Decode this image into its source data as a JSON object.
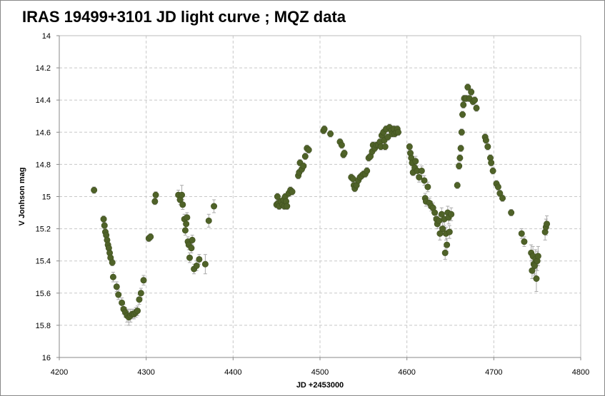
{
  "chart_data": {
    "type": "scatter",
    "title": "IRAS 19499+3101 JD light curve ; MQZ data",
    "xlabel": "JD +2453000",
    "ylabel": "V Jonhson mag",
    "xlim": [
      4200,
      4800
    ],
    "ylim": [
      14,
      16
    ],
    "y_inverted": true,
    "x_ticks": [
      4200,
      4300,
      4400,
      4500,
      4600,
      4700,
      4800
    ],
    "y_ticks": [
      14,
      14.2,
      14.4,
      14.6,
      14.8,
      15,
      15.2,
      15.4,
      15.6,
      15.8,
      16
    ],
    "x_tick_labels": [
      "4200",
      "4300",
      "4400",
      "4500",
      "4600",
      "4700",
      "4800"
    ],
    "y_tick_labels": [
      "14",
      "14.2",
      "14.4",
      "14.6",
      "14.8",
      "15",
      "15.2",
      "15.4",
      "15.6",
      "15.8",
      "16"
    ],
    "grid": true,
    "legend": "none",
    "marker_color": "#4f6228",
    "errorbar_color": "#aaaaaa",
    "grid_color": "#c8c8c8",
    "series": [
      {
        "points": [
          [
            4240,
            14.96,
            0.02
          ],
          [
            4251,
            15.14,
            0.02
          ],
          [
            4252,
            15.18,
            0.02
          ],
          [
            4253,
            15.22,
            0.02
          ],
          [
            4254,
            15.24,
            0.02
          ],
          [
            4255,
            15.27,
            0.02
          ],
          [
            4256,
            15.3,
            0.02
          ],
          [
            4257,
            15.32,
            0.02
          ],
          [
            4258,
            15.35,
            0.02
          ],
          [
            4259,
            15.38,
            0.02
          ],
          [
            4261,
            15.41,
            0.02
          ],
          [
            4262,
            15.5,
            0.03
          ],
          [
            4266,
            15.56,
            0.03
          ],
          [
            4268,
            15.61,
            0.03
          ],
          [
            4272,
            15.66,
            0.03
          ],
          [
            4274,
            15.7,
            0.03
          ],
          [
            4276,
            15.72,
            0.03
          ],
          [
            4278,
            15.74,
            0.04
          ],
          [
            4280,
            15.75,
            0.05
          ],
          [
            4282,
            15.74,
            0.04
          ],
          [
            4284,
            15.73,
            0.03
          ],
          [
            4286,
            15.73,
            0.03
          ],
          [
            4288,
            15.72,
            0.03
          ],
          [
            4290,
            15.71,
            0.03
          ],
          [
            4292,
            15.64,
            0.03
          ],
          [
            4294,
            15.6,
            0.03
          ],
          [
            4297,
            15.52,
            0.03
          ],
          [
            4303,
            15.26,
            0.02
          ],
          [
            4305,
            15.25,
            0.02
          ],
          [
            4310,
            15.03,
            0.02
          ],
          [
            4311,
            14.99,
            0.02
          ],
          [
            4337,
            14.99,
            0.03
          ],
          [
            4339,
            15.02,
            0.03
          ],
          [
            4341,
            14.99,
            0.06
          ],
          [
            4342,
            15.05,
            0.03
          ],
          [
            4344,
            15.14,
            0.03
          ],
          [
            4345,
            15.21,
            0.03
          ],
          [
            4346,
            15.17,
            0.03
          ],
          [
            4347,
            15.13,
            0.03
          ],
          [
            4348,
            15.28,
            0.03
          ],
          [
            4349,
            15.3,
            0.03
          ],
          [
            4350,
            15.38,
            0.03
          ],
          [
            4352,
            15.32,
            0.03
          ],
          [
            4353,
            15.27,
            0.03
          ],
          [
            4355,
            15.45,
            0.03
          ],
          [
            4358,
            15.43,
            0.03
          ],
          [
            4361,
            15.39,
            0.03
          ],
          [
            4368,
            15.42,
            0.06
          ],
          [
            4372,
            15.15,
            0.04
          ],
          [
            4378,
            15.06,
            0.04
          ],
          [
            4450,
            15.05,
            0.02
          ],
          [
            4451,
            15.0,
            0.02
          ],
          [
            4452,
            15.04,
            0.02
          ],
          [
            4453,
            15.06,
            0.02
          ],
          [
            4455,
            15.03,
            0.02
          ],
          [
            4457,
            15.05,
            0.02
          ],
          [
            4458,
            15.02,
            0.02
          ],
          [
            4459,
            15.06,
            0.02
          ],
          [
            4460,
            15.0,
            0.02
          ],
          [
            4461,
            15.03,
            0.02
          ],
          [
            4462,
            15.06,
            0.02
          ],
          [
            4464,
            14.98,
            0.02
          ],
          [
            4466,
            14.96,
            0.02
          ],
          [
            4468,
            14.97,
            0.02
          ],
          [
            4475,
            14.87,
            0.02
          ],
          [
            4476,
            14.85,
            0.02
          ],
          [
            4477,
            14.79,
            0.02
          ],
          [
            4479,
            14.83,
            0.02
          ],
          [
            4481,
            14.81,
            0.02
          ],
          [
            4483,
            14.75,
            0.02
          ],
          [
            4485,
            14.7,
            0.02
          ],
          [
            4487,
            14.71,
            0.02
          ],
          [
            4504,
            14.59,
            0.02
          ],
          [
            4505,
            14.58,
            0.02
          ],
          [
            4512,
            14.61,
            0.02
          ],
          [
            4523,
            14.66,
            0.02
          ],
          [
            4525,
            14.68,
            0.02
          ],
          [
            4527,
            14.74,
            0.02
          ],
          [
            4528,
            14.73,
            0.02
          ],
          [
            4536,
            14.88,
            0.02
          ],
          [
            4538,
            14.89,
            0.02
          ],
          [
            4539,
            14.93,
            0.02
          ],
          [
            4540,
            14.95,
            0.02
          ],
          [
            4542,
            14.93,
            0.02
          ],
          [
            4544,
            14.9,
            0.02
          ],
          [
            4546,
            14.88,
            0.02
          ],
          [
            4548,
            14.87,
            0.02
          ],
          [
            4550,
            14.86,
            0.02
          ],
          [
            4552,
            14.86,
            0.02
          ],
          [
            4554,
            14.84,
            0.02
          ],
          [
            4556,
            14.76,
            0.02
          ],
          [
            4558,
            14.75,
            0.02
          ],
          [
            4560,
            14.72,
            0.02
          ],
          [
            4561,
            14.68,
            0.02
          ],
          [
            4563,
            14.7,
            0.02
          ],
          [
            4565,
            14.68,
            0.02
          ],
          [
            4567,
            14.68,
            0.02
          ],
          [
            4569,
            14.66,
            0.02
          ],
          [
            4570,
            14.69,
            0.02
          ],
          [
            4571,
            14.62,
            0.02
          ],
          [
            4573,
            14.6,
            0.02
          ],
          [
            4574,
            14.65,
            0.02
          ],
          [
            4575,
            14.69,
            0.02
          ],
          [
            4576,
            14.58,
            0.02
          ],
          [
            4578,
            14.63,
            0.02
          ],
          [
            4580,
            14.57,
            0.02
          ],
          [
            4582,
            14.59,
            0.02
          ],
          [
            4583,
            14.61,
            0.02
          ],
          [
            4585,
            14.58,
            0.02
          ],
          [
            4586,
            14.61,
            0.02
          ],
          [
            4588,
            14.6,
            0.02
          ],
          [
            4589,
            14.58,
            0.02
          ],
          [
            4590,
            14.6,
            0.02
          ],
          [
            4603,
            14.69,
            0.02
          ],
          [
            4604,
            14.73,
            0.02
          ],
          [
            4605,
            14.76,
            0.02
          ],
          [
            4606,
            14.79,
            0.02
          ],
          [
            4607,
            14.85,
            0.02
          ],
          [
            4609,
            14.82,
            0.02
          ],
          [
            4610,
            14.78,
            0.03
          ],
          [
            4612,
            14.84,
            0.03
          ],
          [
            4614,
            14.88,
            0.03
          ],
          [
            4617,
            14.84,
            0.03
          ],
          [
            4620,
            14.9,
            0.03
          ],
          [
            4621,
            15.01,
            0.03
          ],
          [
            4622,
            15.03,
            0.03
          ],
          [
            4624,
            14.94,
            0.03
          ],
          [
            4626,
            15.04,
            0.03
          ],
          [
            4628,
            15.06,
            0.03
          ],
          [
            4630,
            15.07,
            0.03
          ],
          [
            4632,
            15.1,
            0.03
          ],
          [
            4634,
            15.14,
            0.03
          ],
          [
            4635,
            15.17,
            0.03
          ],
          [
            4637,
            15.15,
            0.03
          ],
          [
            4638,
            15.23,
            0.04
          ],
          [
            4640,
            15.11,
            0.04
          ],
          [
            4641,
            15.2,
            0.04
          ],
          [
            4643,
            15.14,
            0.04
          ],
          [
            4644,
            15.35,
            0.04
          ],
          [
            4645,
            15.23,
            0.04
          ],
          [
            4646,
            15.3,
            0.04
          ],
          [
            4647,
            15.1,
            0.04
          ],
          [
            4648,
            15.13,
            0.04
          ],
          [
            4649,
            15.22,
            0.04
          ],
          [
            4651,
            15.11,
            0.04
          ],
          [
            4658,
            14.93,
            0.02
          ],
          [
            4660,
            14.81,
            0.02
          ],
          [
            4661,
            14.76,
            0.02
          ],
          [
            4662,
            14.7,
            0.02
          ],
          [
            4663,
            14.6,
            0.02
          ],
          [
            4664,
            14.49,
            0.02
          ],
          [
            4665,
            14.43,
            0.02
          ],
          [
            4666,
            14.39,
            0.02
          ],
          [
            4668,
            14.39,
            0.02
          ],
          [
            4670,
            14.32,
            0.02
          ],
          [
            4672,
            14.39,
            0.02
          ],
          [
            4674,
            14.35,
            0.02
          ],
          [
            4676,
            14.41,
            0.02
          ],
          [
            4678,
            14.4,
            0.02
          ],
          [
            4680,
            14.45,
            0.02
          ],
          [
            4690,
            14.63,
            0.02
          ],
          [
            4691,
            14.65,
            0.02
          ],
          [
            4693,
            14.69,
            0.02
          ],
          [
            4696,
            14.76,
            0.02
          ],
          [
            4697,
            14.79,
            0.02
          ],
          [
            4699,
            14.84,
            0.02
          ],
          [
            4703,
            14.92,
            0.02
          ],
          [
            4705,
            14.94,
            0.02
          ],
          [
            4707,
            14.98,
            0.02
          ],
          [
            4710,
            15.01,
            0.02
          ],
          [
            4720,
            15.1,
            0.02
          ],
          [
            4732,
            15.23,
            0.03
          ],
          [
            4735,
            15.28,
            0.03
          ],
          [
            4743,
            15.35,
            0.05
          ],
          [
            4744,
            15.46,
            0.05
          ],
          [
            4745,
            15.37,
            0.06
          ],
          [
            4746,
            15.42,
            0.06
          ],
          [
            4747,
            15.43,
            0.06
          ],
          [
            4748,
            15.39,
            0.06
          ],
          [
            4749,
            15.51,
            0.08
          ],
          [
            4750,
            15.4,
            0.06
          ],
          [
            4751,
            15.37,
            0.06
          ],
          [
            4759,
            15.22,
            0.05
          ],
          [
            4760,
            15.19,
            0.05
          ],
          [
            4761,
            15.17,
            0.05
          ]
        ]
      }
    ]
  }
}
